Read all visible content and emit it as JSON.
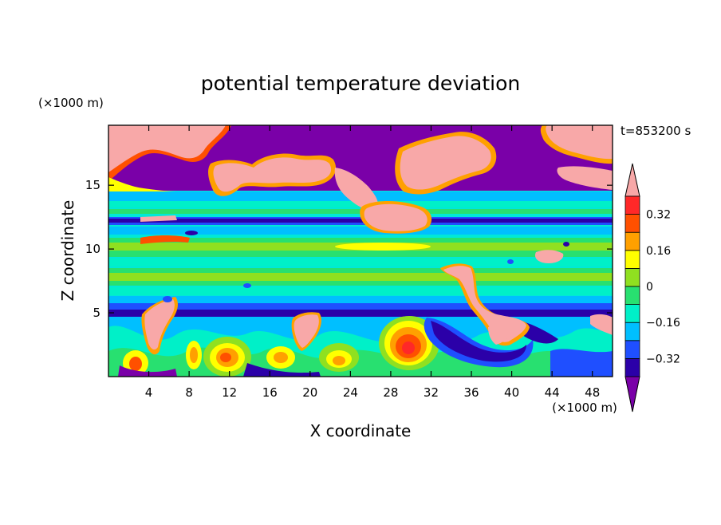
{
  "chart_data": {
    "type": "heatmap",
    "title": "potential temperature deviation",
    "xlabel": "X coordinate",
    "ylabel": "Z coordinate",
    "x_unit": "(×1000 m)",
    "y_unit": "(×1000 m)",
    "time_label": "t=853200 s",
    "xlim": [
      0,
      50
    ],
    "ylim": [
      0,
      19.7
    ],
    "x_ticks": [
      4,
      8,
      12,
      16,
      20,
      24,
      28,
      32,
      36,
      40,
      44,
      48
    ],
    "y_ticks": [
      5,
      10,
      15
    ],
    "grid": false,
    "colorbar": {
      "placement": "right",
      "tick_labels": [
        "0.32",
        "0.16",
        "0",
        "-0.16",
        "-0.32"
      ],
      "tick_values": [
        0.32,
        0.16,
        0,
        -0.16,
        -0.32
      ],
      "levels": [
        -0.4,
        -0.32,
        -0.24,
        -0.16,
        -0.08,
        0,
        0.08,
        0.16,
        0.24,
        0.32,
        0.4
      ],
      "colors": [
        "#7a00a8",
        "#2b00a8",
        "#1f4fff",
        "#00bfff",
        "#00f0c8",
        "#28e070",
        "#90e020",
        "#ffff00",
        "#ffa000",
        "#ff5000",
        "#ff2828",
        "#f8a8a8"
      ]
    },
    "colors": {
      "background_field": "#00e8d8",
      "frame": "#000000"
    }
  }
}
